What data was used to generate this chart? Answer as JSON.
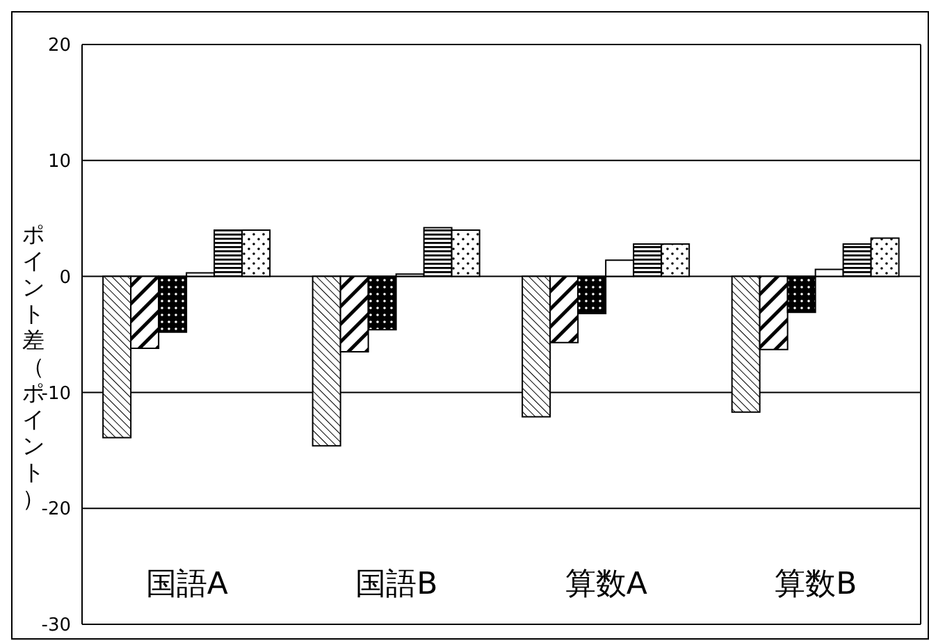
{
  "chart_data": {
    "type": "bar",
    "ylabel": "ポイント差（ポイント）",
    "categories": [
      "国語A",
      "国語B",
      "算数A",
      "算数B"
    ],
    "series": [
      {
        "color": "#000000",
        "values": [
          -13.9,
          -14.6,
          -12.1,
          -11.7
        ]
      },
      {
        "color": "#000000",
        "values": [
          -6.2,
          -6.5,
          -5.7,
          -6.3
        ]
      },
      {
        "color": "#000000",
        "values": [
          -4.8,
          -4.6,
          -3.2,
          -3.1
        ]
      },
      {
        "color": "#000000",
        "values": [
          0.3,
          0.2,
          1.4,
          0.6
        ]
      },
      {
        "color": "#000000",
        "values": [
          4.0,
          4.2,
          2.8,
          2.8
        ]
      },
      {
        "color": "#000000",
        "values": [
          4.0,
          4.0,
          2.8,
          3.3
        ]
      }
    ],
    "ylim": [
      -30,
      20
    ],
    "yticks": [
      -30,
      -20,
      -10,
      0,
      10,
      20
    ],
    "grid": "y",
    "legend": false
  }
}
